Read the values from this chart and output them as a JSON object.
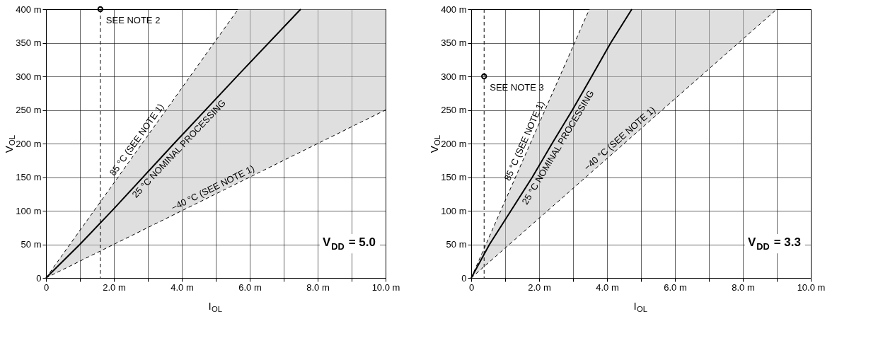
{
  "chart_data": [
    {
      "type": "line",
      "xlabel": "I$_{OL}$",
      "ylabel": "V$_{OL}$",
      "xlim": [
        0,
        10
      ],
      "ylim": [
        0,
        400
      ],
      "xticks": [
        0,
        {
          "value": 1,
          "label": null
        },
        {
          "value": 2,
          "label": "2.0 m"
        },
        {
          "value": 3,
          "label": null
        },
        {
          "value": 4,
          "label": "4.0 m"
        },
        {
          "value": 5,
          "label": null
        },
        {
          "value": 6,
          "label": "6.0 m"
        },
        {
          "value": 7,
          "label": null
        },
        {
          "value": 8,
          "label": "8.0 m"
        },
        {
          "value": 9,
          "label": null
        },
        {
          "value": 10,
          "label": "10.0 m"
        }
      ],
      "yticks": [
        0,
        {
          "value": 50,
          "label": "50 m"
        },
        {
          "value": 100,
          "label": "100 m"
        },
        {
          "value": 150,
          "label": "150 m"
        },
        {
          "value": 200,
          "label": "200 m"
        },
        {
          "value": 250,
          "label": "250 m"
        },
        {
          "value": 300,
          "label": "300 m"
        },
        {
          "value": 350,
          "label": "350 m"
        },
        {
          "value": 400,
          "label": "400 m"
        }
      ],
      "grid": true,
      "legend": false,
      "series": [
        {
          "name": "25 °C NOMINAL PROCESSING",
          "color": "#000000",
          "line_style": "solid",
          "x": [
            0,
            1,
            2,
            3.77,
            5.66,
            7.5,
            10
          ],
          "values": [
            0,
            50,
            103,
            200,
            302,
            400,
            null
          ],
          "lower": [
            0,
            25,
            50,
            94,
            142,
            188,
            250
          ],
          "upper": [
            0,
            71,
            141,
            266,
            400,
            400,
            400
          ]
        },
        {
          "name": "85 °C (SEE NOTE 1)",
          "color": "#000000",
          "line_style": "dashed",
          "x": [
            0,
            5.66
          ],
          "values": [
            0,
            400
          ]
        },
        {
          "name": "−40 °C (SEE NOTE 1)",
          "color": "#000000",
          "line_style": "dashed",
          "x": [
            0,
            10
          ],
          "values": [
            0,
            250
          ]
        },
        {
          "type": "scatter",
          "marker": "circle",
          "color": "#000000",
          "x": [
            1.6
          ],
          "values": [
            400
          ]
        }
      ],
      "ref_lines": [
        {
          "axis": "x",
          "value": 1.6,
          "color": "#000000",
          "line_style": "dashed"
        }
      ],
      "annotations": [
        {
          "text": "SEE NOTE 2",
          "x": 1.6,
          "y": 400
        },
        "V$_{DD}$ = 5.0"
      ]
    },
    {
      "type": "line",
      "xlabel": "I$_{OL}$",
      "ylabel": "V$_{OL}$",
      "xlim": [
        0,
        10
      ],
      "ylim": [
        0,
        400
      ],
      "xticks": [
        0,
        {
          "value": 1,
          "label": null
        },
        {
          "value": 2,
          "label": "2.0 m"
        },
        {
          "value": 3,
          "label": null
        },
        {
          "value": 4,
          "label": "4.0 m"
        },
        {
          "value": 5,
          "label": null
        },
        {
          "value": 6,
          "label": "6.0 m"
        },
        {
          "value": 7,
          "label": null
        },
        {
          "value": 8,
          "label": "8.0 m"
        },
        {
          "value": 9,
          "label": null
        },
        {
          "value": 10,
          "label": "10.0 m"
        }
      ],
      "yticks": [
        0,
        {
          "value": 50,
          "label": "50 m"
        },
        {
          "value": 100,
          "label": "100 m"
        },
        {
          "value": 150,
          "label": "150 m"
        },
        {
          "value": 200,
          "label": "200 m"
        },
        {
          "value": 250,
          "label": "250 m"
        },
        {
          "value": 300,
          "label": "300 m"
        },
        {
          "value": 350,
          "label": "350 m"
        },
        {
          "value": 400,
          "label": "400 m"
        }
      ],
      "grid": true,
      "legend": false,
      "series": [
        {
          "name": "25 °C NOMINAL PROCESSING",
          "color": "#000000",
          "line_style": "solid",
          "x": [
            0,
            0.54,
            1.17,
            1.8,
            2.38,
            2.98,
            3.48,
            4.11,
            4.73,
            9
          ],
          "values": [
            0,
            50,
            100,
            150,
            200,
            250,
            294,
            350,
            400,
            null
          ],
          "lower": [
            0,
            24,
            52,
            80,
            106,
            132,
            155,
            182,
            210,
            400
          ],
          "upper": [
            0,
            62,
            134,
            207,
            274,
            343,
            400,
            400,
            400,
            400
          ]
        },
        {
          "name": "85 °C (SEE NOTE 1)",
          "color": "#000000",
          "line_style": "dashed",
          "x": [
            0,
            3.48
          ],
          "values": [
            0,
            400
          ]
        },
        {
          "name": "−40 °C (SEE NOTE 1)",
          "color": "#000000",
          "line_style": "dashed",
          "x": [
            0,
            9
          ],
          "values": [
            0,
            400
          ]
        },
        {
          "type": "scatter",
          "marker": "circle",
          "color": "#000000",
          "x": [
            0.38
          ],
          "values": [
            300
          ]
        }
      ],
      "ref_lines": [
        {
          "axis": "x",
          "value": 0.38,
          "color": "#000000",
          "line_style": "dashed"
        }
      ],
      "annotations": [
        {
          "text": "SEE NOTE 3",
          "x": 0.38,
          "y": 300
        },
        "V$_{DD}$ = 3.3"
      ]
    }
  ]
}
